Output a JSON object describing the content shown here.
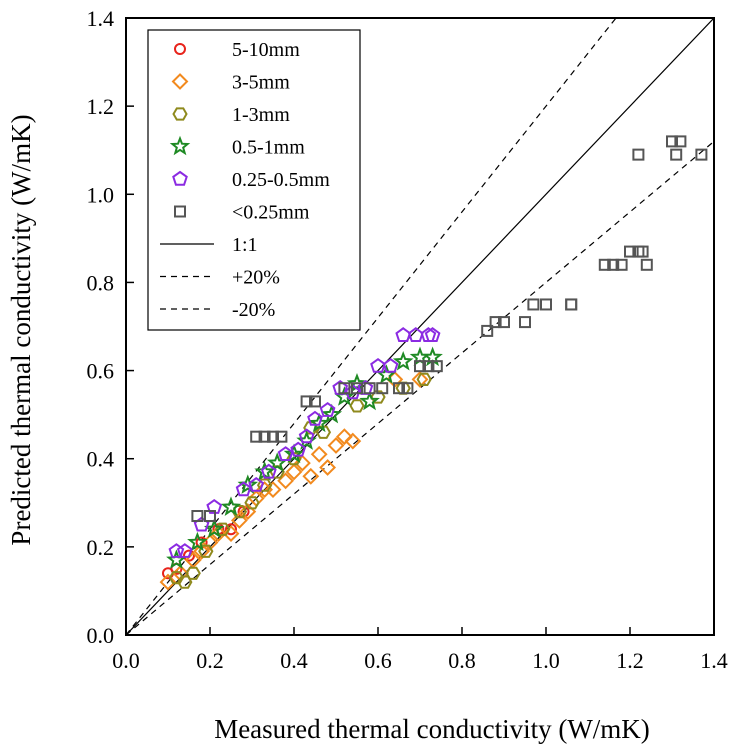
{
  "chart_data": {
    "type": "scatter",
    "xlabel": "Measured thermal conductivity (W/mK)",
    "ylabel": "Predicted thermal conductivity (W/mK)",
    "xlim": [
      0.0,
      1.4
    ],
    "ylim": [
      0.0,
      1.4
    ],
    "xticks": [
      "0.0",
      "0.2",
      "0.4",
      "0.6",
      "0.8",
      "1.0",
      "1.2",
      "1.4"
    ],
    "yticks": [
      "0.0",
      "0.2",
      "0.4",
      "0.6",
      "0.8",
      "1.0",
      "1.2",
      "1.4"
    ],
    "grid": false,
    "legend_position": "top-left",
    "series": [
      {
        "name": "5-10mm",
        "marker": "circle",
        "color": "#e8231b",
        "x": [
          0.1,
          0.12,
          0.15,
          0.18,
          0.22,
          0.25,
          0.28
        ],
        "y": [
          0.14,
          0.15,
          0.18,
          0.21,
          0.24,
          0.24,
          0.28
        ]
      },
      {
        "name": "3-5mm",
        "marker": "diamond",
        "color": "#f28a1e",
        "x": [
          0.1,
          0.13,
          0.16,
          0.18,
          0.2,
          0.22,
          0.25,
          0.27,
          0.29,
          0.31,
          0.33,
          0.35,
          0.38,
          0.4,
          0.42,
          0.44,
          0.46,
          0.48,
          0.5,
          0.52,
          0.54,
          0.64,
          0.7
        ],
        "y": [
          0.12,
          0.14,
          0.17,
          0.19,
          0.21,
          0.23,
          0.23,
          0.26,
          0.28,
          0.31,
          0.33,
          0.33,
          0.35,
          0.37,
          0.39,
          0.36,
          0.41,
          0.38,
          0.43,
          0.45,
          0.44,
          0.58,
          0.58
        ]
      },
      {
        "name": "1-3mm",
        "marker": "hexagon",
        "color": "#8f8a1d",
        "x": [
          0.12,
          0.14,
          0.16,
          0.19,
          0.23,
          0.27,
          0.3,
          0.33,
          0.36,
          0.4,
          0.44,
          0.47,
          0.55,
          0.6,
          0.66,
          0.71
        ],
        "y": [
          0.13,
          0.12,
          0.14,
          0.19,
          0.24,
          0.28,
          0.3,
          0.34,
          0.37,
          0.4,
          0.47,
          0.46,
          0.52,
          0.54,
          0.56,
          0.58
        ]
      },
      {
        "name": "0.5-1mm",
        "marker": "star",
        "color": "#1f8a24",
        "x": [
          0.12,
          0.17,
          0.21,
          0.25,
          0.29,
          0.33,
          0.36,
          0.4,
          0.43,
          0.46,
          0.49,
          0.52,
          0.55,
          0.58,
          0.62,
          0.66,
          0.7,
          0.73
        ],
        "y": [
          0.17,
          0.21,
          0.24,
          0.29,
          0.34,
          0.37,
          0.39,
          0.41,
          0.44,
          0.48,
          0.5,
          0.54,
          0.57,
          0.53,
          0.59,
          0.62,
          0.63,
          0.63
        ]
      },
      {
        "name": "0.25-0.5mm",
        "marker": "pentagon",
        "color": "#8b2be2",
        "x": [
          0.12,
          0.14,
          0.18,
          0.21,
          0.28,
          0.31,
          0.34,
          0.38,
          0.41,
          0.43,
          0.45,
          0.48,
          0.51,
          0.54,
          0.57,
          0.6,
          0.63,
          0.66,
          0.69,
          0.72,
          0.73
        ],
        "y": [
          0.19,
          0.19,
          0.25,
          0.29,
          0.33,
          0.34,
          0.37,
          0.41,
          0.42,
          0.45,
          0.49,
          0.51,
          0.56,
          0.55,
          0.56,
          0.61,
          0.61,
          0.68,
          0.68,
          0.68,
          0.68
        ]
      },
      {
        "name": "<0.25mm",
        "marker": "square",
        "color": "#555555",
        "x": [
          0.17,
          0.2,
          0.31,
          0.33,
          0.35,
          0.37,
          0.43,
          0.45,
          0.52,
          0.55,
          0.58,
          0.61,
          0.65,
          0.67,
          0.7,
          0.72,
          0.74,
          0.86,
          0.88,
          0.9,
          0.95,
          0.97,
          1.0,
          1.06,
          1.06,
          1.14,
          1.16,
          1.18,
          1.2,
          1.22,
          1.23,
          1.24,
          1.22,
          1.3,
          1.32,
          1.31,
          1.37
        ],
        "y": [
          0.27,
          0.27,
          0.45,
          0.45,
          0.45,
          0.45,
          0.53,
          0.53,
          0.56,
          0.56,
          0.56,
          0.56,
          0.56,
          0.56,
          0.61,
          0.61,
          0.61,
          0.69,
          0.71,
          0.71,
          0.71,
          0.75,
          0.75,
          0.75,
          0.75,
          0.84,
          0.84,
          0.84,
          0.87,
          0.87,
          0.87,
          0.84,
          1.09,
          1.12,
          1.12,
          1.09,
          1.09
        ]
      }
    ],
    "lines": [
      {
        "name": "1:1",
        "style": "solid",
        "slope": 1.0
      },
      {
        "name": "+20%",
        "style": "dashed",
        "slope": 1.2
      },
      {
        "name": "-20%",
        "style": "dashed",
        "slope": 0.8
      }
    ]
  }
}
